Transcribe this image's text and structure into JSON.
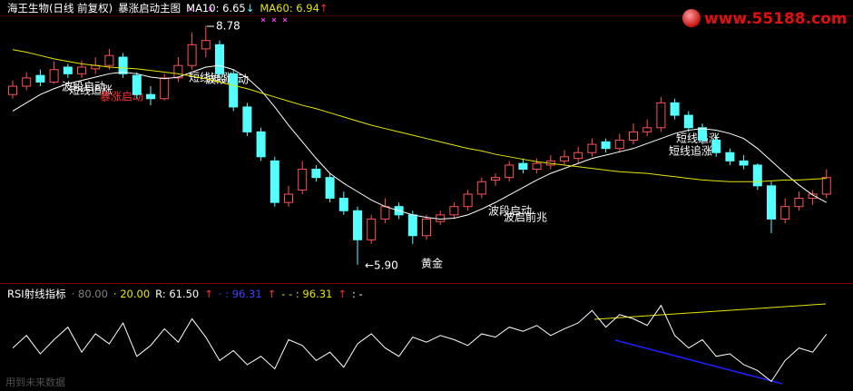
{
  "logo": "www.55188.com",
  "watermark": "用到未来数据",
  "chart_data": [
    {
      "type": "candlestick",
      "title": "海王生物(日线 前复权)",
      "subtitle": "暴涨启动主图",
      "up_color": "#ff5454",
      "down_color": "#54ffff",
      "ylim": [
        5.81,
        8.87
      ],
      "high_label": 8.78,
      "low_label": {
        "value": 5.9,
        "label": "←5.90"
      },
      "annotations": [
        "波段启动",
        "短线追涨",
        "暴涨启动",
        "短线追涨",
        "波段启动",
        "黄金",
        "波段启动",
        "波启前兆",
        "短线追涨",
        "短线追涨"
      ],
      "ohlc": [
        [
          7.95,
          8.12,
          7.9,
          8.05
        ],
        [
          8.05,
          8.22,
          8.0,
          8.15
        ],
        [
          8.18,
          8.25,
          8.05,
          8.1
        ],
        [
          8.1,
          8.35,
          8.08,
          8.25
        ],
        [
          8.28,
          8.32,
          8.15,
          8.2
        ],
        [
          8.2,
          8.36,
          8.15,
          8.28
        ],
        [
          8.26,
          8.4,
          8.2,
          8.3
        ],
        [
          8.3,
          8.5,
          8.25,
          8.42
        ],
        [
          8.4,
          8.45,
          8.15,
          8.2
        ],
        [
          8.18,
          8.22,
          7.9,
          7.95
        ],
        [
          7.95,
          8.05,
          7.82,
          7.9
        ],
        [
          7.9,
          8.2,
          7.88,
          8.15
        ],
        [
          8.15,
          8.4,
          8.1,
          8.3
        ],
        [
          8.3,
          8.7,
          8.25,
          8.55
        ],
        [
          8.5,
          8.78,
          8.4,
          8.6
        ],
        [
          8.55,
          8.6,
          8.15,
          8.2
        ],
        [
          8.2,
          8.25,
          7.75,
          7.8
        ],
        [
          7.8,
          7.85,
          7.45,
          7.5
        ],
        [
          7.5,
          7.55,
          7.15,
          7.2
        ],
        [
          7.15,
          7.2,
          6.6,
          6.65
        ],
        [
          6.65,
          6.85,
          6.6,
          6.75
        ],
        [
          6.8,
          7.15,
          6.75,
          7.05
        ],
        [
          7.05,
          7.1,
          6.9,
          6.95
        ],
        [
          6.95,
          7.0,
          6.65,
          6.7
        ],
        [
          6.7,
          6.78,
          6.5,
          6.55
        ],
        [
          6.55,
          6.6,
          5.9,
          6.2
        ],
        [
          6.2,
          6.5,
          6.15,
          6.45
        ],
        [
          6.45,
          6.7,
          6.4,
          6.6
        ],
        [
          6.6,
          6.65,
          6.45,
          6.5
        ],
        [
          6.5,
          6.55,
          6.15,
          6.25
        ],
        [
          6.25,
          6.5,
          6.2,
          6.45
        ],
        [
          6.42,
          6.55,
          6.38,
          6.5
        ],
        [
          6.5,
          6.65,
          6.45,
          6.6
        ],
        [
          6.6,
          6.8,
          6.55,
          6.75
        ],
        [
          6.75,
          6.95,
          6.7,
          6.9
        ],
        [
          6.92,
          7.0,
          6.85,
          6.95
        ],
        [
          6.95,
          7.15,
          6.9,
          7.1
        ],
        [
          7.12,
          7.18,
          7.0,
          7.05
        ],
        [
          7.05,
          7.18,
          7.0,
          7.12
        ],
        [
          7.1,
          7.22,
          7.05,
          7.15
        ],
        [
          7.15,
          7.28,
          7.1,
          7.2
        ],
        [
          7.18,
          7.32,
          7.12,
          7.25
        ],
        [
          7.25,
          7.42,
          7.2,
          7.35
        ],
        [
          7.38,
          7.42,
          7.25,
          7.3
        ],
        [
          7.3,
          7.48,
          7.25,
          7.4
        ],
        [
          7.4,
          7.6,
          7.35,
          7.5
        ],
        [
          7.5,
          7.65,
          7.45,
          7.55
        ],
        [
          7.55,
          7.92,
          7.5,
          7.85
        ],
        [
          7.85,
          7.9,
          7.65,
          7.7
        ],
        [
          7.7,
          7.75,
          7.5,
          7.55
        ],
        [
          7.55,
          7.6,
          7.35,
          7.4
        ],
        [
          7.4,
          7.45,
          7.2,
          7.25
        ],
        [
          7.25,
          7.3,
          7.1,
          7.15
        ],
        [
          7.15,
          7.22,
          7.05,
          7.1
        ],
        [
          7.1,
          7.12,
          6.8,
          6.85
        ],
        [
          6.85,
          6.9,
          6.28,
          6.45
        ],
        [
          6.45,
          6.7,
          6.4,
          6.6
        ],
        [
          6.6,
          6.78,
          6.55,
          6.7
        ],
        [
          6.7,
          6.8,
          6.62,
          6.75
        ],
        [
          6.75,
          7.05,
          6.7,
          6.95
        ]
      ],
      "series": [
        {
          "name": "MA10: 6.65",
          "arrow": "↓",
          "arrow_color": "#54ffff",
          "color": "#ffffff",
          "values": [
            7.75,
            7.85,
            7.95,
            8.02,
            8.08,
            8.12,
            8.16,
            8.2,
            8.22,
            8.2,
            8.16,
            8.14,
            8.16,
            8.22,
            8.28,
            8.3,
            8.25,
            8.15,
            8.0,
            7.8,
            7.58,
            7.38,
            7.18,
            7.0,
            6.88,
            6.78,
            6.68,
            6.6,
            6.55,
            6.5,
            6.47,
            6.45,
            6.46,
            6.5,
            6.57,
            6.65,
            6.74,
            6.83,
            6.92,
            7.0,
            7.06,
            7.12,
            7.18,
            7.22,
            7.26,
            7.3,
            7.36,
            7.42,
            7.48,
            7.52,
            7.54,
            7.52,
            7.48,
            7.42,
            7.3,
            7.15,
            7.0,
            6.86,
            6.74,
            6.65
          ]
        },
        {
          "name": "MA60: 6.94",
          "arrow": "↑",
          "arrow_color": "#ff3030",
          "color": "#e6e600",
          "values": [
            8.49,
            8.46,
            8.42,
            8.38,
            8.35,
            8.32,
            8.3,
            8.28,
            8.27,
            8.26,
            8.24,
            8.22,
            8.2,
            8.17,
            8.14,
            8.1,
            8.06,
            8.02,
            7.97,
            7.92,
            7.87,
            7.82,
            7.78,
            7.73,
            7.68,
            7.63,
            7.58,
            7.54,
            7.5,
            7.46,
            7.42,
            7.38,
            7.34,
            7.3,
            7.27,
            7.23,
            7.2,
            7.17,
            7.14,
            7.12,
            7.1,
            7.08,
            7.06,
            7.04,
            7.02,
            7.01,
            7.0,
            6.98,
            6.96,
            6.94,
            6.92,
            6.91,
            6.9,
            6.9,
            6.9,
            6.91,
            6.92,
            6.92,
            6.93,
            6.94
          ]
        }
      ]
    },
    {
      "type": "line",
      "title": "RSI射线指标",
      "ylim": [
        0,
        100
      ],
      "color": "#ffffff",
      "header": [
        {
          "text": "· 80.00",
          "color": "#808080"
        },
        {
          "text": "· 20.00",
          "color": "#e6e600"
        },
        {
          "text": "R: 61.50",
          "color": "#ffffff"
        },
        {
          "text": "↑",
          "color": "#ff3030"
        },
        {
          "text": "· : 96.31",
          "color": "#4040ff"
        },
        {
          "text": "↑",
          "color": "#ff3030"
        },
        {
          "text": "- - : 96.31",
          "color": "#e6e600"
        },
        {
          "text": "↑",
          "color": "#ff3030"
        },
        {
          "text": ": -",
          "color": "#ffffff"
        }
      ],
      "values": [
        45,
        60,
        38,
        55,
        70,
        40,
        62,
        50,
        75,
        35,
        48,
        68,
        52,
        80,
        58,
        30,
        42,
        25,
        35,
        20,
        55,
        48,
        30,
        40,
        22,
        50,
        62,
        45,
        35,
        58,
        52,
        60,
        55,
        48,
        62,
        58,
        70,
        65,
        72,
        60,
        68,
        75,
        90,
        70,
        85,
        80,
        72,
        96,
        60,
        45,
        55,
        35,
        38,
        25,
        18,
        5,
        30,
        45,
        40,
        61.5
      ]
    }
  ]
}
